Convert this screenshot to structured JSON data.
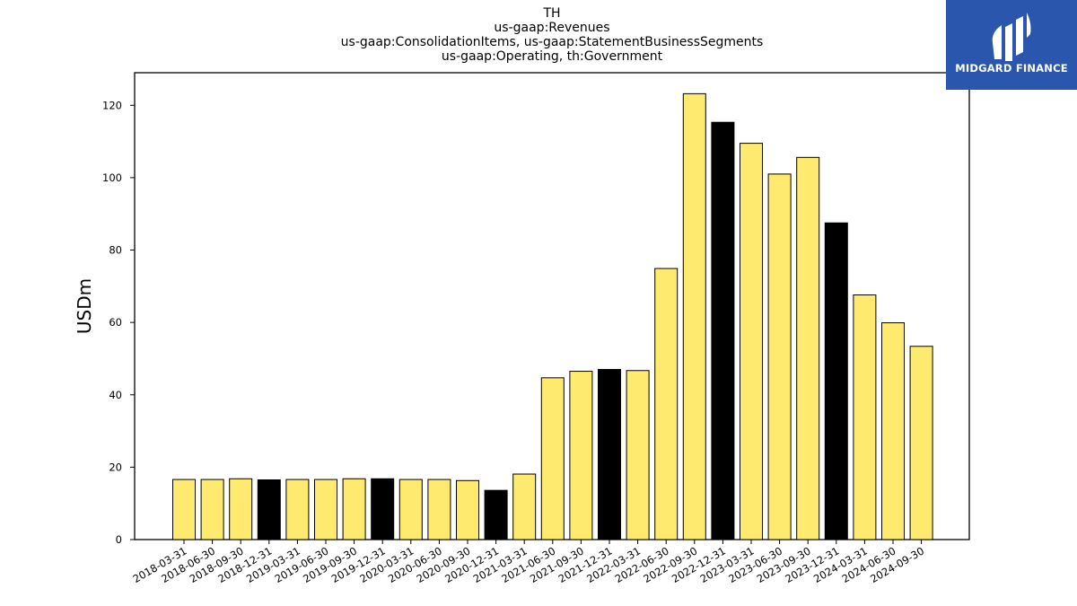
{
  "logo": {
    "text": "MIDGARD FINANCE",
    "background": "#2a56ad"
  },
  "chart_data": {
    "type": "bar",
    "title_lines": [
      "TH",
      "us-gaap:Revenues",
      "us-gaap:ConsolidationItems, us-gaap:StatementBusinessSegments",
      "us-gaap:Operating, th:Government"
    ],
    "xlabel": "",
    "ylabel": "USDm",
    "ylim": [
      0,
      129
    ],
    "yticks": [
      0,
      20,
      40,
      60,
      80,
      100,
      120
    ],
    "grid": false,
    "colors": {
      "quarter": "#ffea70",
      "year_end": "#000000",
      "edge": "#000000"
    },
    "categories": [
      "2018-03-31",
      "2018-06-30",
      "2018-09-30",
      "2018-12-31",
      "2019-03-31",
      "2019-06-30",
      "2019-09-30",
      "2019-12-31",
      "2020-03-31",
      "2020-06-30",
      "2020-09-30",
      "2020-12-31",
      "2021-03-31",
      "2021-06-30",
      "2021-09-30",
      "2021-12-31",
      "2022-03-31",
      "2022-06-30",
      "2022-09-30",
      "2022-12-31",
      "2023-03-31",
      "2023-06-30",
      "2023-09-30",
      "2023-12-31",
      "2024-03-31",
      "2024-06-30",
      "2024-09-30"
    ],
    "values": [
      16.6,
      16.6,
      16.8,
      16.5,
      16.6,
      16.6,
      16.8,
      16.8,
      16.6,
      16.6,
      16.3,
      13.6,
      18.1,
      44.7,
      46.5,
      47.0,
      46.7,
      74.9,
      123.2,
      115.3,
      109.5,
      101.0,
      105.6,
      87.5,
      67.6,
      59.9,
      53.4
    ],
    "highlight": [
      false,
      false,
      false,
      true,
      false,
      false,
      false,
      true,
      false,
      false,
      false,
      true,
      false,
      false,
      false,
      true,
      false,
      false,
      false,
      true,
      false,
      false,
      false,
      true,
      false,
      false,
      false
    ]
  }
}
